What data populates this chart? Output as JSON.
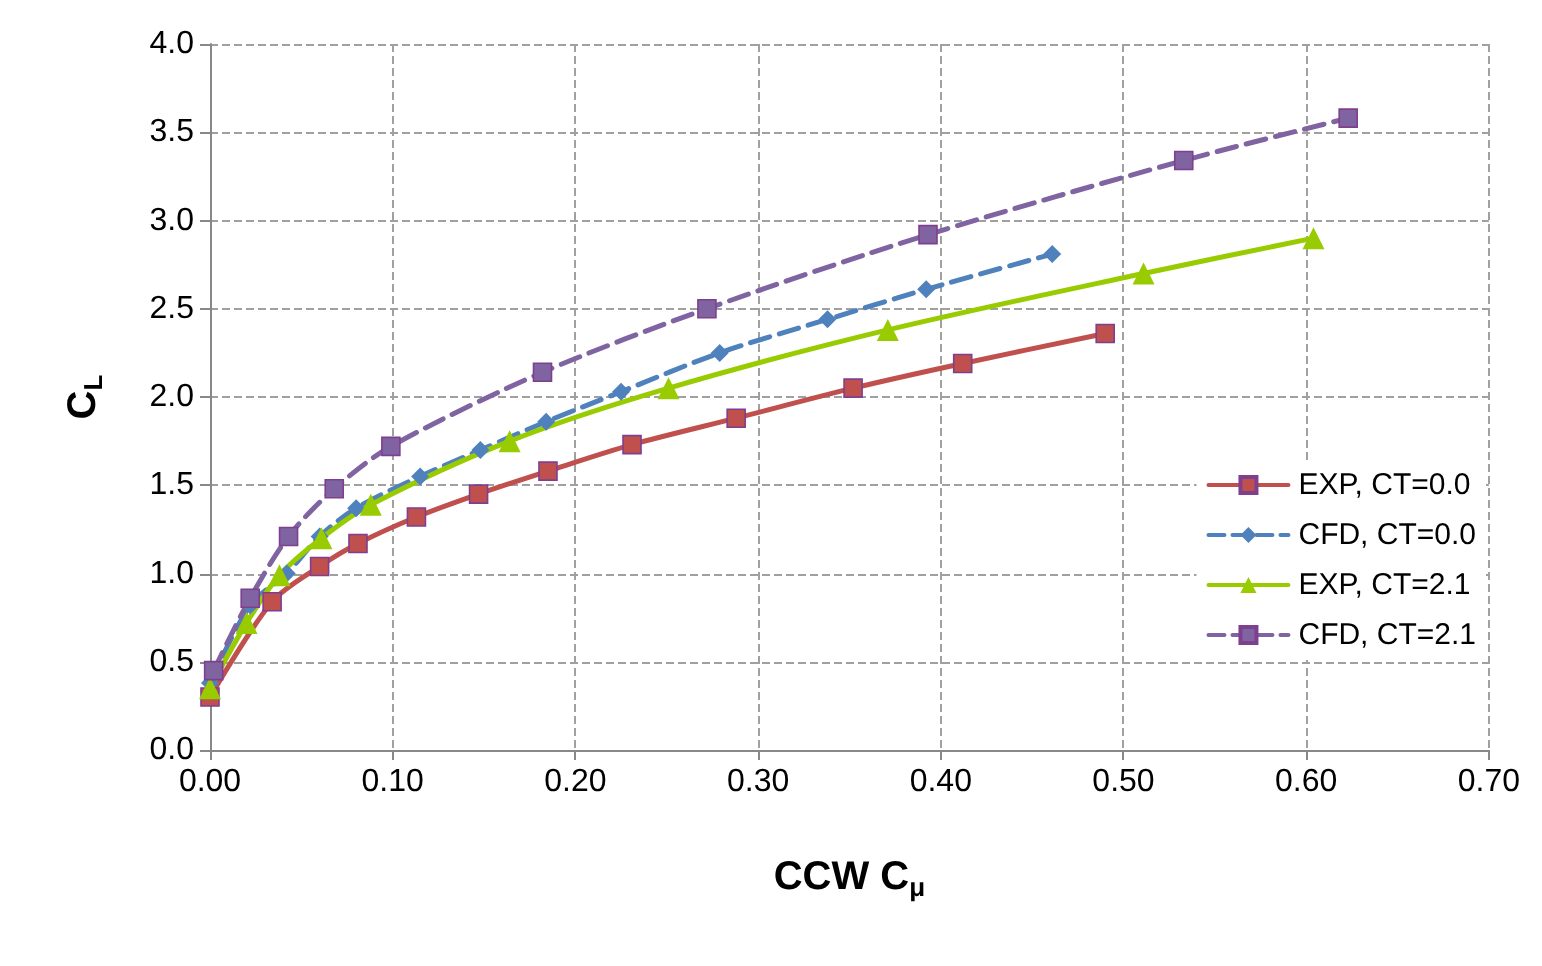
{
  "chart_data": {
    "type": "line",
    "xlabel": "CCW C$_{μ}$",
    "ylabel": "C$_{L}$",
    "xlim": [
      0,
      0.7
    ],
    "xticks": [
      {
        "value": 0,
        "label": "0.00"
      },
      {
        "value": 0.1,
        "label": "0.10"
      },
      {
        "value": 0.2,
        "label": "0.20"
      },
      {
        "value": 0.3,
        "label": "0.30"
      },
      {
        "value": 0.4,
        "label": "0.40"
      },
      {
        "value": 0.5,
        "label": "0.50"
      },
      {
        "value": 0.6,
        "label": "0.60"
      },
      {
        "value": 0.7,
        "label": "0.70"
      }
    ],
    "ylim": [
      0,
      4
    ],
    "yticks": [
      {
        "value": 0,
        "label": "0.0"
      },
      {
        "value": 0.5,
        "label": "0.5"
      },
      {
        "value": 1,
        "label": "1.0"
      },
      {
        "value": 1.5,
        "label": "1.5"
      },
      {
        "value": 2,
        "label": "2.0"
      },
      {
        "value": 2.5,
        "label": "2.5"
      },
      {
        "value": 3,
        "label": "3.0"
      },
      {
        "value": 3.5,
        "label": "3.5"
      },
      {
        "value": 4,
        "label": "4.0"
      }
    ],
    "grid": true,
    "legend": "right",
    "series": [
      {
        "name": "EXP, CT=0.0",
        "color": "#c0504d",
        "marker": "square",
        "line_style": "solid",
        "x": [
          0,
          0.034,
          0.06,
          0.081,
          0.113,
          0.147,
          0.185,
          0.231,
          0.288,
          0.352,
          0.412,
          0.49
        ],
        "values": [
          0.3,
          0.84,
          1.04,
          1.17,
          1.32,
          1.45,
          1.58,
          1.73,
          1.88,
          2.05,
          2.19,
          2.36
        ]
      },
      {
        "name": "CFD, CT=0.0",
        "color": "#4f81bd",
        "marker": "diamond",
        "line_style": "dashed",
        "x": [
          0,
          0.022,
          0.042,
          0.06,
          0.08,
          0.115,
          0.148,
          0.184,
          0.225,
          0.279,
          0.338,
          0.392,
          0.461
        ],
        "values": [
          0.38,
          0.82,
          1.0,
          1.21,
          1.37,
          1.55,
          1.7,
          1.86,
          2.03,
          2.25,
          2.44,
          2.61,
          2.81
        ]
      },
      {
        "name": "EXP, CT=2.1",
        "color": "#99cc00",
        "marker": "triangle",
        "line_style": "solid",
        "x": [
          0,
          0.02,
          0.038,
          0.061,
          0.088,
          0.164,
          0.251,
          0.371,
          0.511,
          0.604
        ],
        "values": [
          0.35,
          0.72,
          0.99,
          1.2,
          1.39,
          1.75,
          2.05,
          2.38,
          2.7,
          2.9
        ]
      },
      {
        "name": "CFD, CT=2.1",
        "color": "#8064a2",
        "marker": "square",
        "line_style": "dashed",
        "x": [
          0.002,
          0.022,
          0.043,
          0.068,
          0.099,
          0.182,
          0.272,
          0.393,
          0.533,
          0.623
        ],
        "values": [
          0.45,
          0.86,
          1.21,
          1.48,
          1.72,
          2.14,
          2.5,
          2.92,
          3.34,
          3.58
        ]
      }
    ]
  }
}
